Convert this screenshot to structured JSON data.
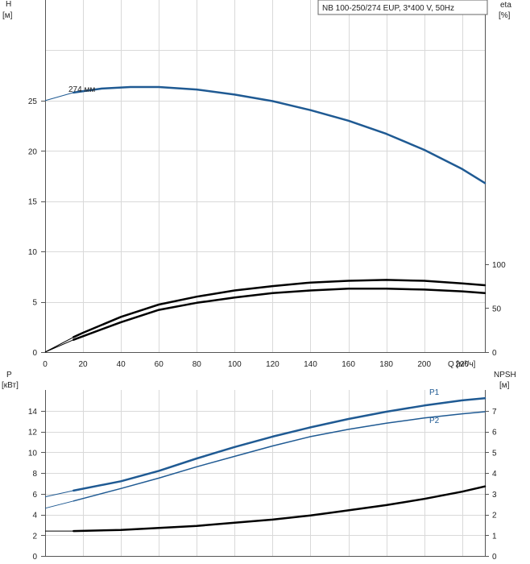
{
  "legend_box": {
    "text": "NB 100-250/274 EUP, 3*400 V, 50Hz"
  },
  "top_left_axis": {
    "name": "H",
    "unit": "[м]"
  },
  "top_right_axis": {
    "name": "eta",
    "unit": "[%]"
  },
  "x_axis": {
    "unit": "Q [м³/ч]"
  },
  "bottom_left_axis": {
    "name": "P",
    "unit": "[кВт]"
  },
  "bottom_right_axis": {
    "name": "NPSH",
    "unit": "[м]"
  },
  "chart_data": [
    {
      "type": "line",
      "panel": "top",
      "x_ticks": [
        0,
        20,
        40,
        60,
        80,
        100,
        120,
        140,
        160,
        180,
        200,
        220
      ],
      "xlim": [
        0,
        232
      ],
      "ylim_left": [
        0,
        35
      ],
      "y_ticks_left": [
        0,
        5,
        10,
        15,
        20,
        25
      ],
      "ylim_right": [
        0,
        400
      ],
      "y_ticks_right": [
        0,
        50,
        100
      ],
      "grid": true,
      "series": [
        {
          "name": "274 мм",
          "axis": "left",
          "color": "#1f5a93",
          "x": [
            0,
            15,
            30,
            45,
            60,
            80,
            100,
            120,
            140,
            160,
            180,
            200,
            220,
            232
          ],
          "y": [
            25.0,
            25.8,
            26.2,
            26.35,
            26.35,
            26.1,
            25.6,
            24.95,
            24.05,
            23.0,
            21.7,
            20.1,
            18.2,
            16.8
          ]
        },
        {
          "name": "",
          "axis": "right",
          "color": "#000000",
          "x": [
            0,
            15,
            20,
            40,
            60,
            80,
            100,
            120,
            140,
            160,
            180,
            200,
            220,
            232
          ],
          "y": [
            0,
            17,
            22,
            40,
            54,
            63,
            70,
            75,
            79,
            81,
            82,
            81,
            78,
            76
          ]
        },
        {
          "name": "",
          "axis": "right",
          "color": "#000000",
          "x": [
            0,
            15,
            20,
            40,
            60,
            80,
            100,
            120,
            140,
            160,
            180,
            200,
            220,
            232
          ],
          "y": [
            0,
            14,
            18,
            34,
            48,
            56,
            62,
            67,
            70,
            72,
            72,
            71,
            69,
            67
          ]
        }
      ]
    },
    {
      "type": "line",
      "panel": "bottom",
      "x_ticks": [
        0,
        20,
        40,
        60,
        80,
        100,
        120,
        140,
        160,
        180,
        200,
        220
      ],
      "xlim": [
        0,
        232
      ],
      "ylim_left": [
        0,
        16
      ],
      "y_ticks_left": [
        0,
        2,
        4,
        6,
        8,
        10,
        12,
        14
      ],
      "ylim_right": [
        0,
        8
      ],
      "y_ticks_right": [
        0,
        1,
        2,
        3,
        4,
        5,
        6,
        7
      ],
      "grid": true,
      "series": [
        {
          "name": "P1",
          "axis": "left",
          "color": "#1f5a93",
          "x": [
            0,
            15,
            40,
            60,
            80,
            100,
            120,
            140,
            160,
            180,
            200,
            220,
            232
          ],
          "y": [
            5.7,
            6.3,
            7.2,
            8.2,
            9.4,
            10.5,
            11.5,
            12.4,
            13.2,
            13.9,
            14.5,
            15.0,
            15.2
          ]
        },
        {
          "name": "P2",
          "axis": "left",
          "color": "#1f5a93",
          "x": [
            0,
            15,
            40,
            60,
            80,
            100,
            120,
            140,
            160,
            180,
            200,
            220,
            232
          ],
          "y": [
            4.6,
            5.3,
            6.5,
            7.5,
            8.6,
            9.6,
            10.6,
            11.5,
            12.2,
            12.8,
            13.3,
            13.7,
            13.9
          ]
        },
        {
          "name": "",
          "axis": "right",
          "color": "#000000",
          "x": [
            0,
            15,
            40,
            60,
            80,
            100,
            120,
            140,
            160,
            180,
            200,
            220,
            232
          ],
          "y": [
            1.2,
            1.2,
            1.25,
            1.35,
            1.45,
            1.6,
            1.75,
            1.95,
            2.2,
            2.45,
            2.75,
            3.1,
            3.35
          ]
        }
      ]
    }
  ]
}
